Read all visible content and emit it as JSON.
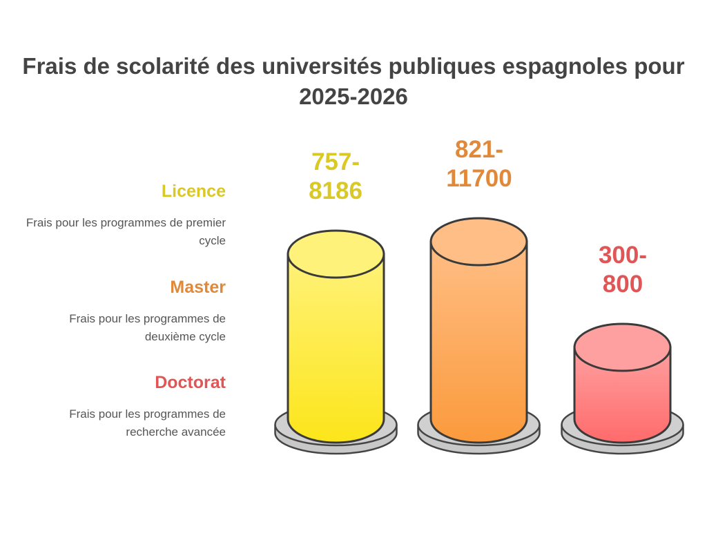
{
  "chart_data": {
    "type": "bar",
    "style": "3d-cylinder",
    "title": "Frais de scolarité des universités publiques espagnoles pour 2025-2026",
    "categories": [
      "Licence",
      "Master",
      "Doctorat"
    ],
    "descriptions": [
      "Frais pour les programmes de premier cycle",
      "Frais pour les programmes de deuxième cycle",
      "Frais pour les programmes de recherche avancée"
    ],
    "value_labels": [
      "757-8186",
      "821-11700",
      "300-800"
    ],
    "ranges": [
      [
        757,
        8186
      ],
      [
        821,
        11700
      ],
      [
        300,
        800
      ]
    ],
    "colors": [
      "#fce51a",
      "#fb9a3c",
      "#ff6b6b"
    ],
    "label_colors": [
      "#d9c826",
      "#e0893a",
      "#e05555"
    ],
    "grid": false,
    "legend": "left"
  }
}
